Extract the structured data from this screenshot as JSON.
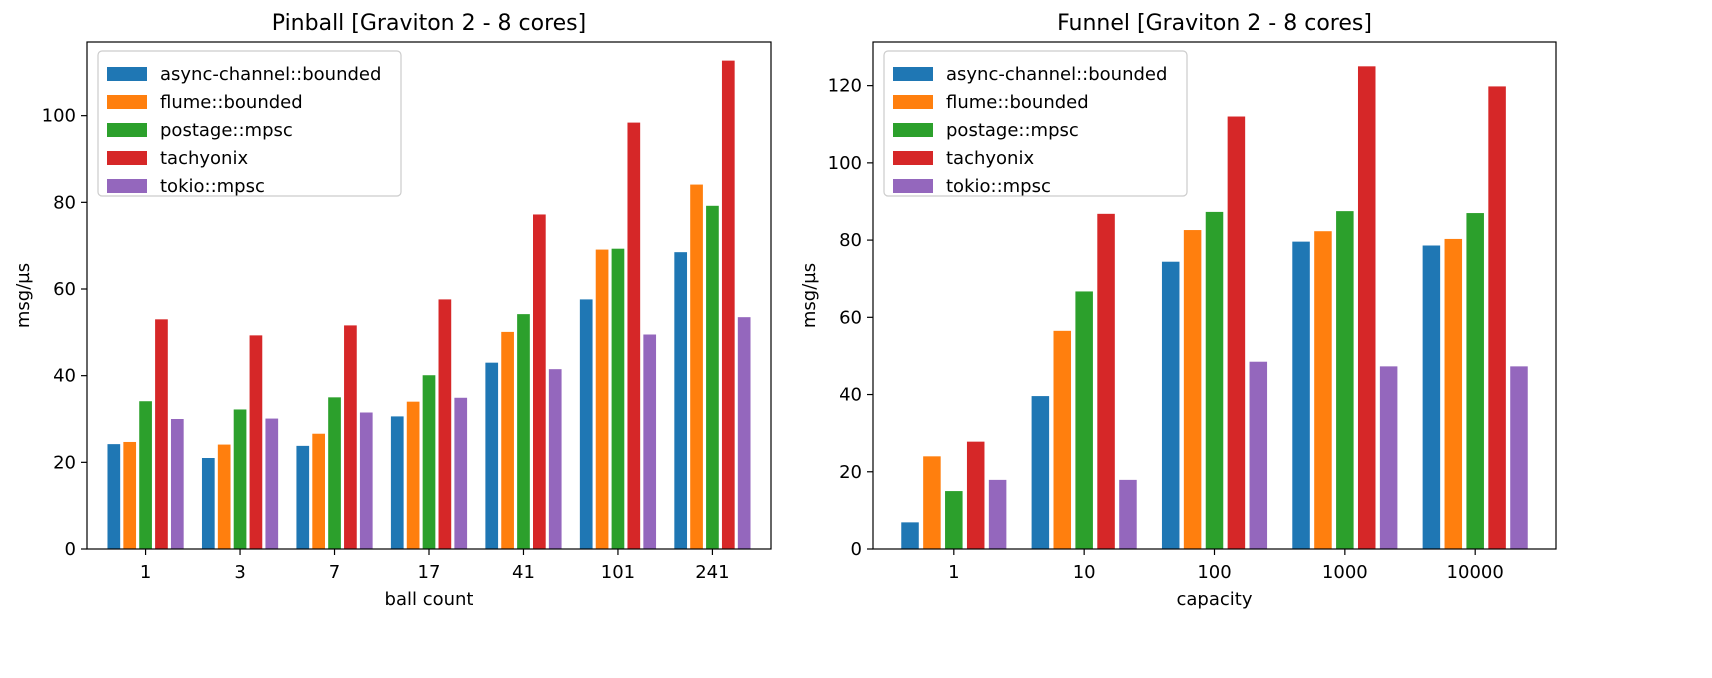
{
  "chart_data": [
    {
      "type": "bar",
      "title": "Pinball [Graviton 2 - 8 cores]",
      "xlabel": "ball count",
      "ylabel": "msg/µs",
      "categories": [
        "1",
        "3",
        "7",
        "17",
        "41",
        "101",
        "241"
      ],
      "ylim": [
        0,
        117
      ],
      "yticks": [
        0,
        20,
        40,
        60,
        80,
        100
      ],
      "legend_position": "top-left",
      "grid": false,
      "series": [
        {
          "name": "async-channel::bounded",
          "color": "#1f77b4",
          "values": [
            24.2,
            21.0,
            23.8,
            30.6,
            43.0,
            57.6,
            68.5
          ]
        },
        {
          "name": "flume::bounded",
          "color": "#ff7f0e",
          "values": [
            24.7,
            24.1,
            26.6,
            34.0,
            50.1,
            69.1,
            84.1
          ]
        },
        {
          "name": "postage::mpsc",
          "color": "#2ca02c",
          "values": [
            34.1,
            32.2,
            35.0,
            40.1,
            54.2,
            69.3,
            79.2
          ]
        },
        {
          "name": "tachyonix",
          "color": "#d62728",
          "values": [
            53.0,
            49.3,
            51.6,
            57.6,
            77.2,
            98.4,
            112.7
          ]
        },
        {
          "name": "tokio::mpsc",
          "color": "#9467bd",
          "values": [
            30.0,
            30.1,
            31.5,
            34.9,
            41.5,
            49.5,
            53.5
          ]
        }
      ]
    },
    {
      "type": "bar",
      "title": "Funnel [Graviton 2 - 8 cores]",
      "xlabel": "capacity",
      "ylabel": "msg/µs",
      "categories": [
        "1",
        "10",
        "100",
        "1000",
        "10000"
      ],
      "ylim": [
        0,
        131.3
      ],
      "yticks": [
        0,
        20,
        40,
        60,
        80,
        100,
        120
      ],
      "legend_position": "top-left",
      "grid": false,
      "series": [
        {
          "name": "async-channel::bounded",
          "color": "#1f77b4",
          "values": [
            6.9,
            39.6,
            74.4,
            79.6,
            78.6
          ]
        },
        {
          "name": "flume::bounded",
          "color": "#ff7f0e",
          "values": [
            24.0,
            56.5,
            82.6,
            82.3,
            80.3
          ]
        },
        {
          "name": "postage::mpsc",
          "color": "#2ca02c",
          "values": [
            15.0,
            66.7,
            87.3,
            87.5,
            87.0
          ]
        },
        {
          "name": "tachyonix",
          "color": "#d62728",
          "values": [
            27.8,
            86.8,
            112.0,
            125.0,
            119.8
          ]
        },
        {
          "name": "tokio::mpsc",
          "color": "#9467bd",
          "values": [
            17.9,
            17.9,
            48.5,
            47.3,
            47.3
          ]
        }
      ]
    }
  ]
}
